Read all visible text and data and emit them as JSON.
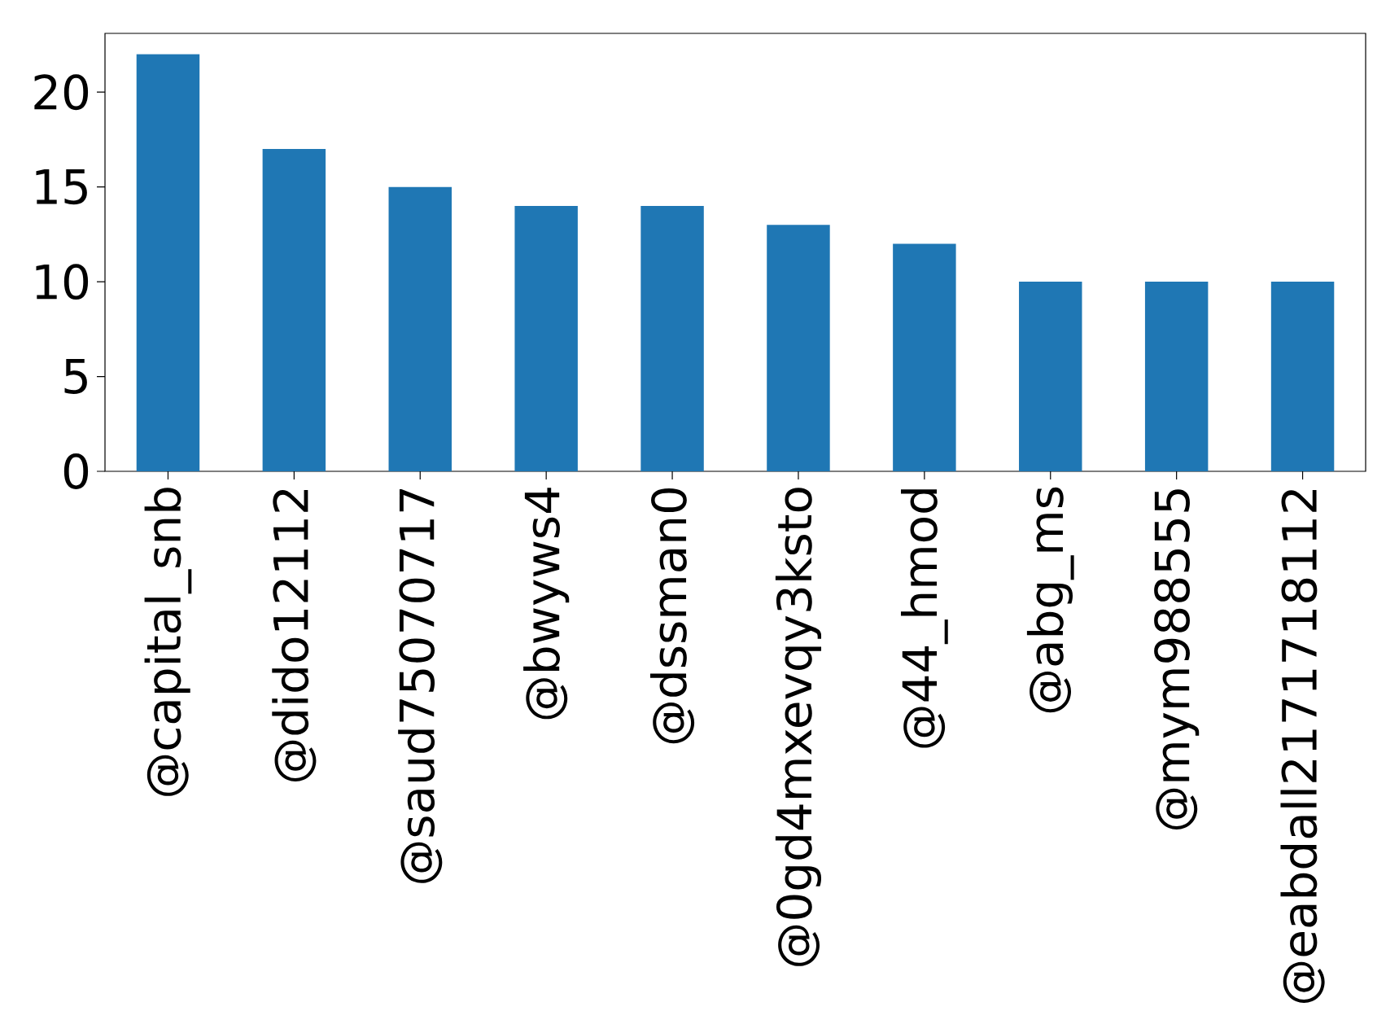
{
  "chart_data": {
    "type": "bar",
    "categories": [
      "@capital_snb",
      "@dido12112",
      "@saud75070717",
      "@bwyws4",
      "@dssman0",
      "@0gd4mxevqy3ksto",
      "@44_hmod",
      "@abg_ms",
      "@mym988555",
      "@eabdall2171718112"
    ],
    "values": [
      22,
      17,
      15,
      14,
      14,
      13,
      12,
      10,
      10,
      10
    ],
    "color": "#1f77b4",
    "ylim": [
      0,
      23.1
    ],
    "yticks": [
      0,
      5,
      10,
      15,
      20
    ]
  }
}
